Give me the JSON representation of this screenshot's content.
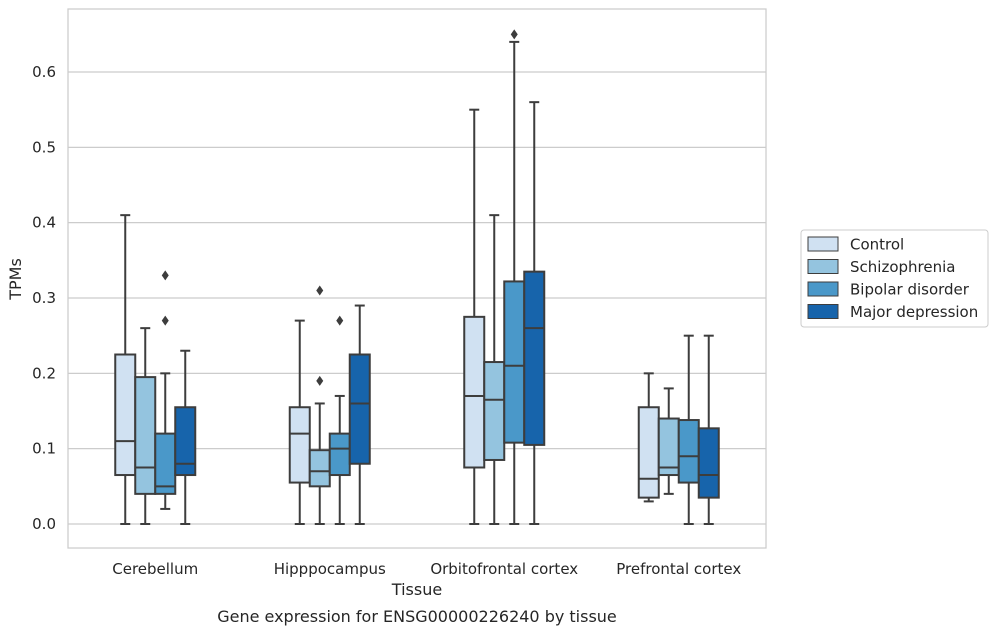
{
  "chart_data": {
    "type": "box",
    "title": "",
    "caption": "Gene expression for ENSG00000226240 by tissue",
    "xlabel": "Tissue",
    "ylabel": "TPMs",
    "ylim": [
      -0.032,
      0.683
    ],
    "yticks": [
      0.0,
      0.1,
      0.2,
      0.3,
      0.4,
      0.5,
      0.6
    ],
    "ytick_labels": [
      "0.0",
      "0.1",
      "0.2",
      "0.3",
      "0.4",
      "0.5",
      "0.6"
    ],
    "grid": "horizontal",
    "legend_position": "right",
    "categories": [
      "Cerebellum",
      "Hipppocampus",
      "Orbitofrontal cortex",
      "Prefrontal cortex"
    ],
    "series": [
      {
        "name": "Control",
        "color": "#d0e1f2",
        "boxes": [
          {
            "whislo": 0.0,
            "q1": 0.065,
            "med": 0.11,
            "q3": 0.225,
            "whishi": 0.41,
            "fliers": []
          },
          {
            "whislo": 0.0,
            "q1": 0.055,
            "med": 0.12,
            "q3": 0.155,
            "whishi": 0.27,
            "fliers": []
          },
          {
            "whislo": 0.0,
            "q1": 0.075,
            "med": 0.17,
            "q3": 0.275,
            "whishi": 0.55,
            "fliers": []
          },
          {
            "whislo": 0.03,
            "q1": 0.035,
            "med": 0.06,
            "q3": 0.155,
            "whishi": 0.2,
            "fliers": []
          }
        ]
      },
      {
        "name": "Schizophrenia",
        "color": "#94c4df",
        "boxes": [
          {
            "whislo": 0.0,
            "q1": 0.04,
            "med": 0.075,
            "q3": 0.195,
            "whishi": 0.26,
            "fliers": []
          },
          {
            "whislo": 0.0,
            "q1": 0.05,
            "med": 0.07,
            "q3": 0.098,
            "whishi": 0.16,
            "fliers": [
              0.19,
              0.31
            ]
          },
          {
            "whislo": 0.0,
            "q1": 0.085,
            "med": 0.165,
            "q3": 0.215,
            "whishi": 0.41,
            "fliers": []
          },
          {
            "whislo": 0.04,
            "q1": 0.065,
            "med": 0.075,
            "q3": 0.14,
            "whishi": 0.18,
            "fliers": []
          }
        ]
      },
      {
        "name": "Bipolar disorder",
        "color": "#4a98c9",
        "boxes": [
          {
            "whislo": 0.02,
            "q1": 0.04,
            "med": 0.05,
            "q3": 0.12,
            "whishi": 0.2,
            "fliers": [
              0.27,
              0.33
            ]
          },
          {
            "whislo": 0.0,
            "q1": 0.065,
            "med": 0.1,
            "q3": 0.12,
            "whishi": 0.17,
            "fliers": [
              0.27
            ]
          },
          {
            "whislo": 0.0,
            "q1": 0.108,
            "med": 0.21,
            "q3": 0.322,
            "whishi": 0.64,
            "fliers": [
              0.65
            ]
          },
          {
            "whislo": 0.0,
            "q1": 0.055,
            "med": 0.09,
            "q3": 0.138,
            "whishi": 0.25,
            "fliers": []
          }
        ]
      },
      {
        "name": "Major depression",
        "color": "#1764ab",
        "boxes": [
          {
            "whislo": 0.0,
            "q1": 0.065,
            "med": 0.08,
            "q3": 0.155,
            "whishi": 0.23,
            "fliers": []
          },
          {
            "whislo": 0.0,
            "q1": 0.08,
            "med": 0.16,
            "q3": 0.225,
            "whishi": 0.29,
            "fliers": []
          },
          {
            "whislo": 0.0,
            "q1": 0.105,
            "med": 0.26,
            "q3": 0.335,
            "whishi": 0.56,
            "fliers": []
          },
          {
            "whislo": 0.0,
            "q1": 0.035,
            "med": 0.065,
            "q3": 0.127,
            "whishi": 0.25,
            "fliers": []
          }
        ]
      }
    ]
  }
}
